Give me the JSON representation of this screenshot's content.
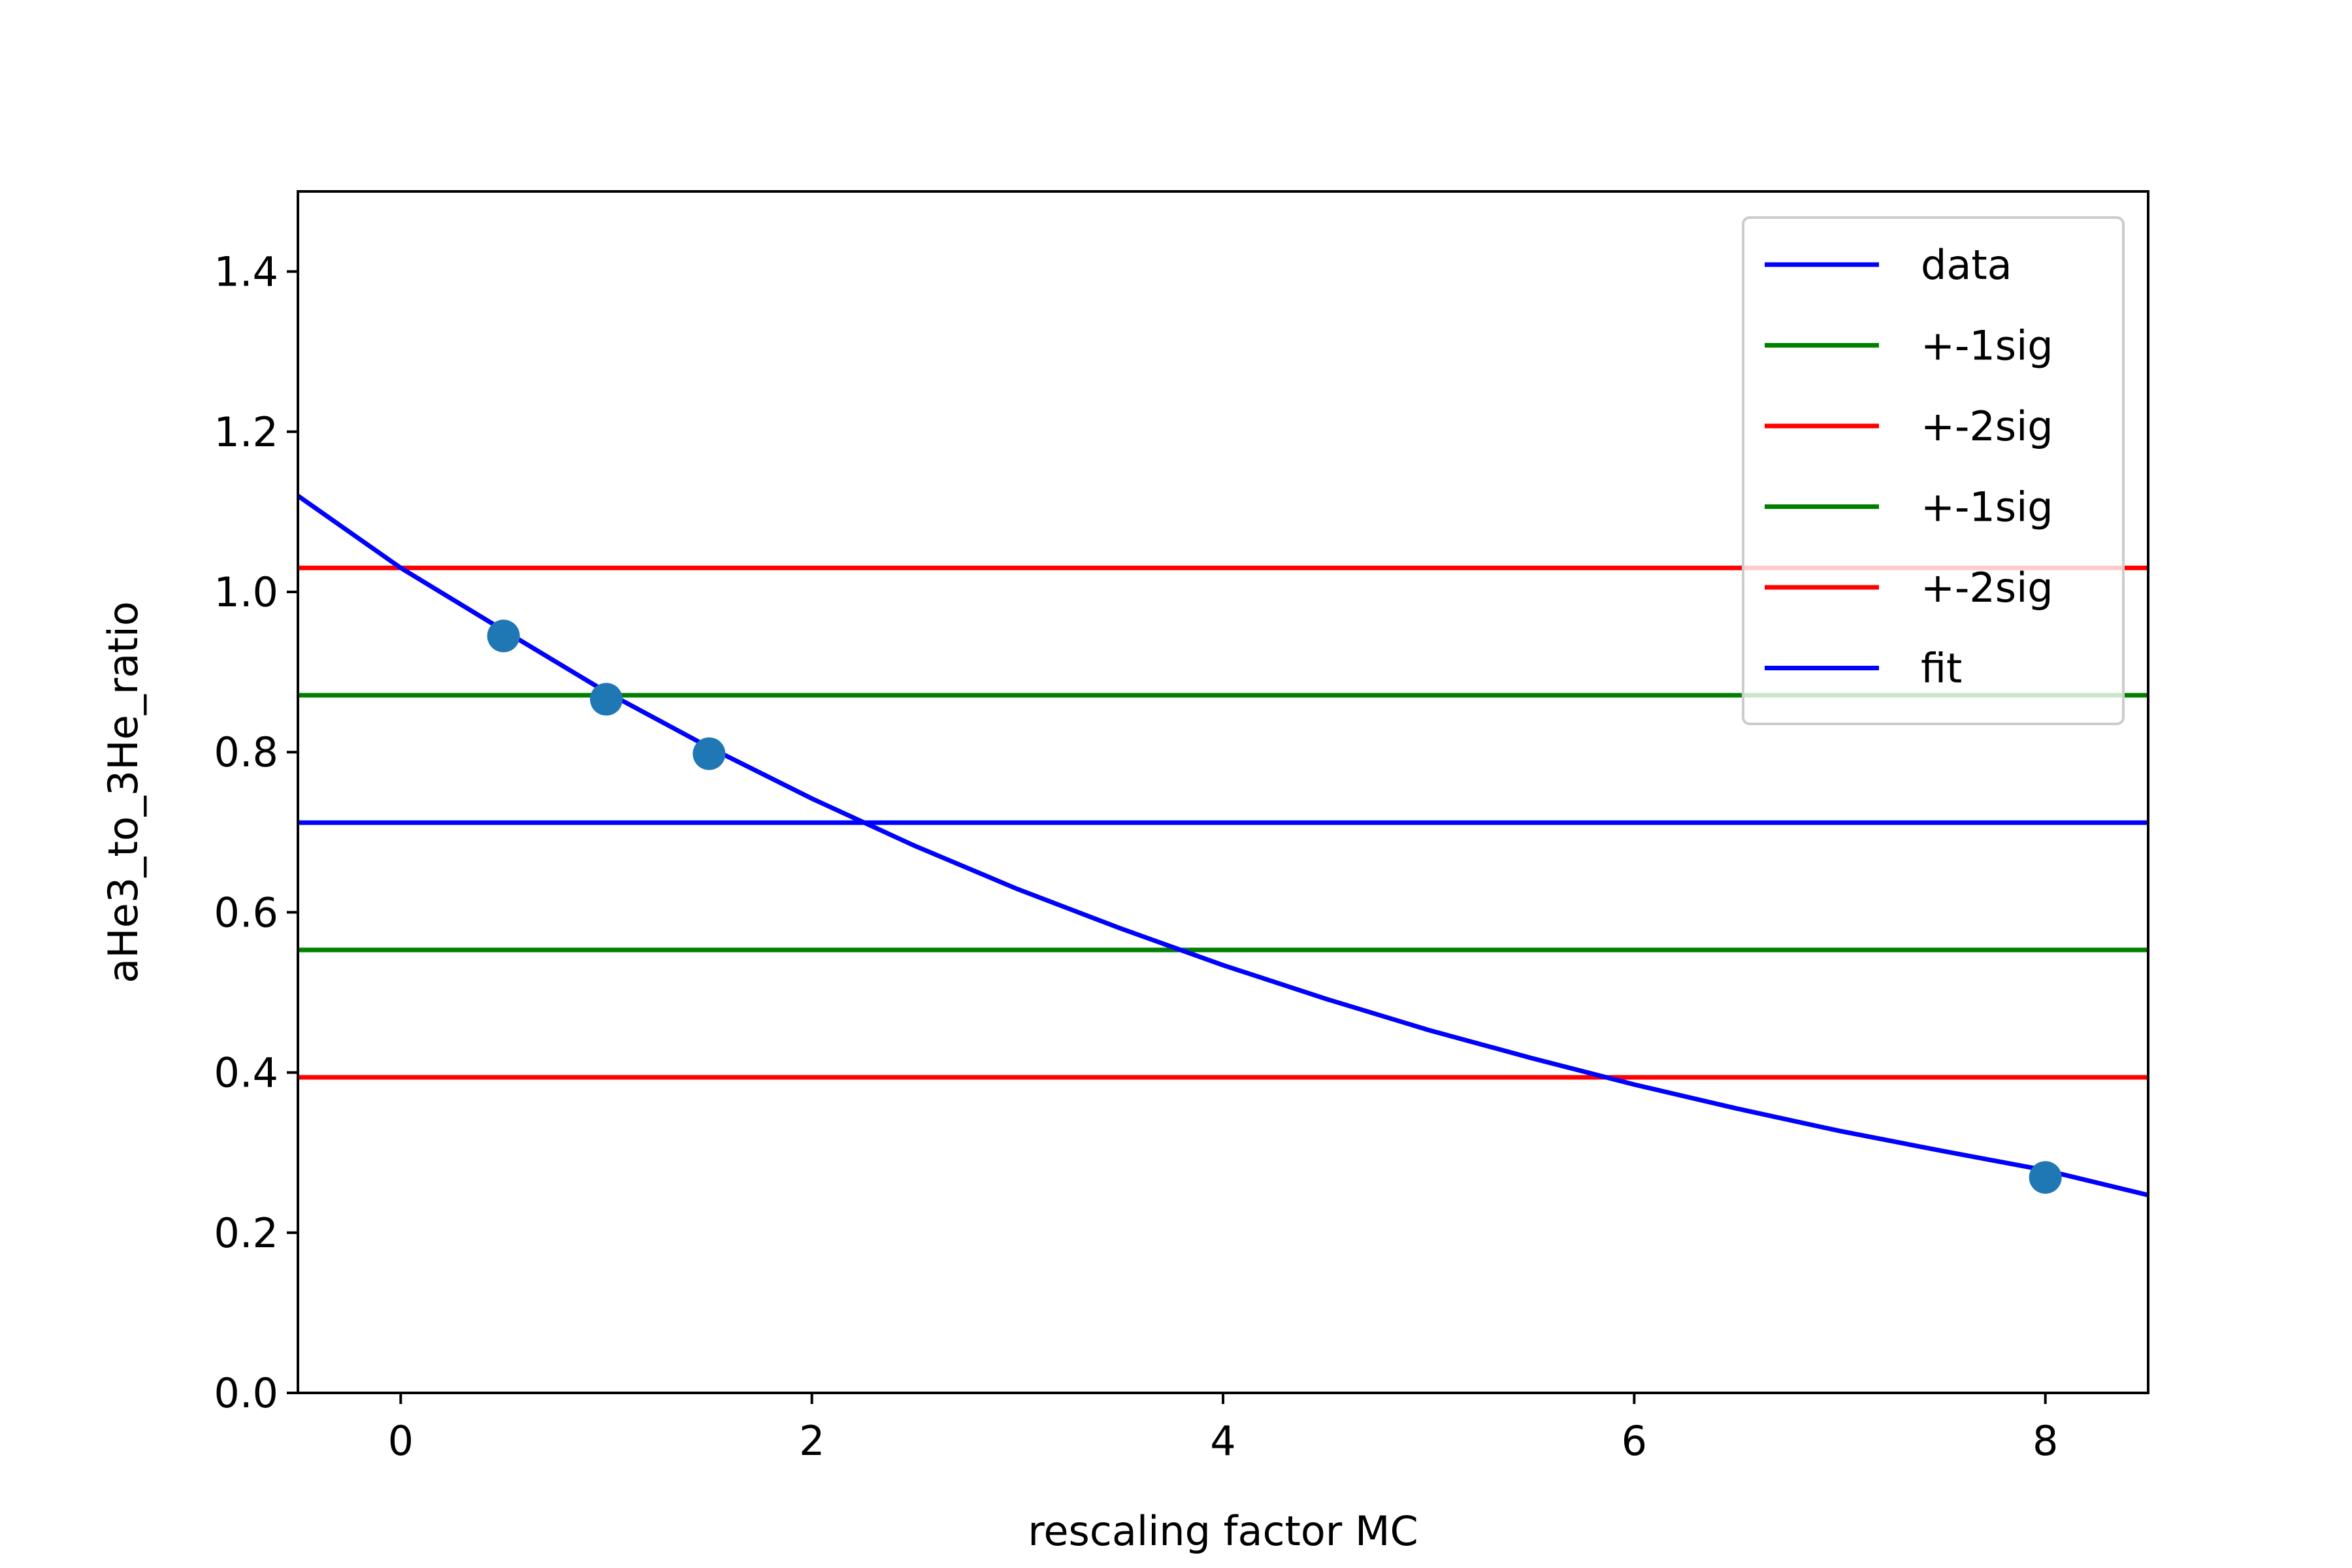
{
  "chart_data": {
    "type": "line",
    "title": "",
    "xlabel": "rescaling factor MC",
    "ylabel": "aHe3_to_3He_ratio",
    "xlim": [
      -0.5,
      8.5
    ],
    "ylim": [
      0.0,
      1.5
    ],
    "xticks": [
      0,
      2,
      4,
      6,
      8
    ],
    "yticks": [
      0.0,
      0.2,
      0.4,
      0.6,
      0.8,
      1.0,
      1.2,
      1.4
    ],
    "xtick_labels": [
      "0",
      "2",
      "4",
      "6",
      "8"
    ],
    "ytick_labels": [
      "0.0",
      "0.2",
      "0.4",
      "0.6",
      "0.8",
      "1.0",
      "1.2",
      "1.4"
    ],
    "grid": false,
    "legend_position": "top-right",
    "horizontal_lines": [
      {
        "name": "data",
        "y": 0.712,
        "color": "#0000ff"
      },
      {
        "name": "+-1sig",
        "y": 0.871,
        "color": "#008000"
      },
      {
        "name": "+-2sig",
        "y": 1.03,
        "color": "#ff0000"
      },
      {
        "name": "+-1sig",
        "y": 0.553,
        "color": "#008000"
      },
      {
        "name": "+-2sig",
        "y": 0.394,
        "color": "#ff0000"
      }
    ],
    "fit": {
      "name": "fit",
      "color": "#0000ff",
      "points": [
        {
          "x": -0.5,
          "y": 1.12
        },
        {
          "x": 0.0,
          "y": 1.03
        },
        {
          "x": 0.5,
          "y": 0.952
        },
        {
          "x": 1.0,
          "y": 0.875
        },
        {
          "x": 1.5,
          "y": 0.806
        },
        {
          "x": 2.0,
          "y": 0.742
        },
        {
          "x": 2.5,
          "y": 0.683
        },
        {
          "x": 3.0,
          "y": 0.629
        },
        {
          "x": 3.5,
          "y": 0.58
        },
        {
          "x": 4.0,
          "y": 0.534
        },
        {
          "x": 4.5,
          "y": 0.492
        },
        {
          "x": 5.0,
          "y": 0.453
        },
        {
          "x": 5.5,
          "y": 0.418
        },
        {
          "x": 6.0,
          "y": 0.385
        },
        {
          "x": 6.5,
          "y": 0.355
        },
        {
          "x": 7.0,
          "y": 0.327
        },
        {
          "x": 7.5,
          "y": 0.302
        },
        {
          "x": 8.0,
          "y": 0.278
        },
        {
          "x": 8.5,
          "y": 0.247
        }
      ]
    },
    "markers": {
      "color": "#1f77b4",
      "points": [
        {
          "x": 0.5,
          "y": 0.945
        },
        {
          "x": 1.0,
          "y": 0.866
        },
        {
          "x": 1.5,
          "y": 0.798
        },
        {
          "x": 8.0,
          "y": 0.269
        }
      ]
    },
    "legend": [
      {
        "label": "data",
        "color": "#0000ff"
      },
      {
        "label": "+-1sig",
        "color": "#008000"
      },
      {
        "label": "+-2sig",
        "color": "#ff0000"
      },
      {
        "label": "+-1sig",
        "color": "#008000"
      },
      {
        "label": "+-2sig",
        "color": "#ff0000"
      },
      {
        "label": "fit",
        "color": "#0000ff"
      }
    ]
  }
}
